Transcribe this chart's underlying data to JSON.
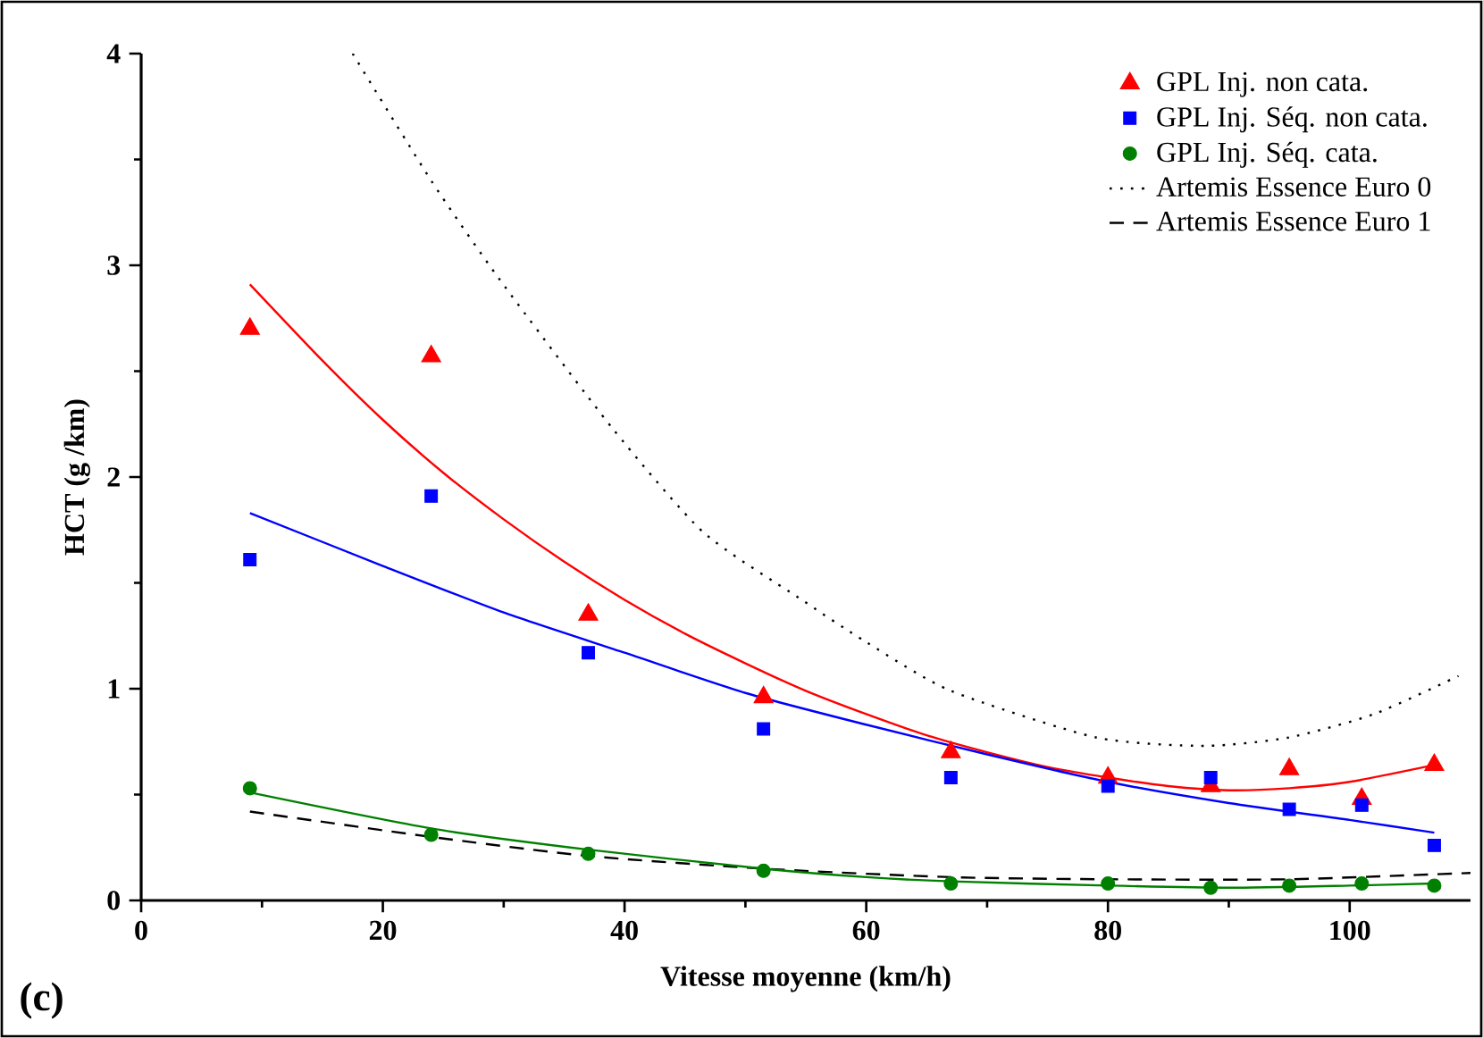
{
  "chart_data": {
    "type": "scatter",
    "xlabel": "Vitesse moyenne (km/h)",
    "ylabel": "HCT (g /km)",
    "annotations": [
      "(c)"
    ],
    "xlim": [
      0,
      110
    ],
    "ylim": [
      0,
      4
    ],
    "xticks": [
      0,
      20,
      40,
      60,
      80,
      100
    ],
    "yticks": [
      0,
      1,
      2,
      3,
      4
    ],
    "grid": false,
    "legend": "top right",
    "series": [
      {
        "name": "GPL Inj. non cata.",
        "marker": "triangle",
        "color": "#ff0000",
        "x": [
          9,
          24,
          37,
          51.5,
          67,
          80,
          88.5,
          95,
          101,
          107
        ],
        "values": [
          2.7,
          2.57,
          1.35,
          0.96,
          0.7,
          0.58,
          0.54,
          0.62,
          0.48,
          0.64
        ]
      },
      {
        "name": "GPL Inj. Séq. non cata.",
        "marker": "square",
        "color": "#0000ff",
        "x": [
          9,
          24,
          37,
          51.5,
          67,
          80,
          88.5,
          95,
          101,
          107
        ],
        "values": [
          1.61,
          1.91,
          1.17,
          0.81,
          0.58,
          0.54,
          0.58,
          0.43,
          0.45,
          0.26
        ]
      },
      {
        "name": "GPL Inj. Séq. cata.",
        "marker": "circle",
        "color": "#008000",
        "x": [
          9,
          24,
          37,
          51.5,
          67,
          80,
          88.5,
          95,
          101,
          107
        ],
        "values": [
          0.53,
          0.31,
          0.22,
          0.14,
          0.08,
          0.08,
          0.06,
          0.07,
          0.08,
          0.07
        ]
      },
      {
        "name": "Artemis Essence Euro 0",
        "type": "line",
        "marker": "none",
        "line_style": "dotted",
        "color": "#000000",
        "x": [
          17.5,
          24,
          29.7,
          39,
          46.5,
          54.4,
          60,
          67,
          79,
          88,
          95,
          102,
          109
        ],
        "values": [
          4.0,
          3.4,
          2.93,
          2.23,
          1.74,
          1.43,
          1.22,
          0.99,
          0.77,
          0.73,
          0.77,
          0.88,
          1.06
        ]
      },
      {
        "name": "Artemis Essence Euro 1",
        "type": "line",
        "marker": "none",
        "line_style": "dashed",
        "color": "#000000",
        "x": [
          9,
          24,
          37,
          51.5,
          67,
          80,
          95,
          110
        ],
        "values": [
          0.42,
          0.3,
          0.21,
          0.15,
          0.11,
          0.1,
          0.1,
          0.13
        ]
      },
      {
        "type": "line",
        "marker": "none",
        "line_style": "solid",
        "color": "#ff0000",
        "x": [
          9,
          15,
          20,
          25,
          30,
          35,
          40,
          45,
          50,
          55,
          60,
          65,
          70,
          75,
          80,
          85,
          90,
          95,
          100,
          107
        ],
        "values": [
          2.91,
          2.55,
          2.27,
          2.02,
          1.8,
          1.6,
          1.42,
          1.26,
          1.12,
          0.99,
          0.88,
          0.78,
          0.7,
          0.63,
          0.58,
          0.54,
          0.52,
          0.53,
          0.56,
          0.64
        ]
      },
      {
        "type": "line",
        "marker": "none",
        "line_style": "solid",
        "color": "#0000ff",
        "x": [
          9,
          20,
          30,
          40,
          50,
          60,
          70,
          80,
          90,
          100,
          107
        ],
        "values": [
          1.83,
          1.58,
          1.36,
          1.17,
          0.98,
          0.83,
          0.69,
          0.56,
          0.46,
          0.38,
          0.32
        ]
      },
      {
        "type": "line",
        "marker": "none",
        "line_style": "solid",
        "color": "#008000",
        "x": [
          9,
          24,
          37,
          51.5,
          60,
          67,
          80,
          90,
          100,
          107
        ],
        "values": [
          0.51,
          0.34,
          0.24,
          0.15,
          0.11,
          0.09,
          0.07,
          0.06,
          0.07,
          0.08
        ]
      }
    ]
  }
}
